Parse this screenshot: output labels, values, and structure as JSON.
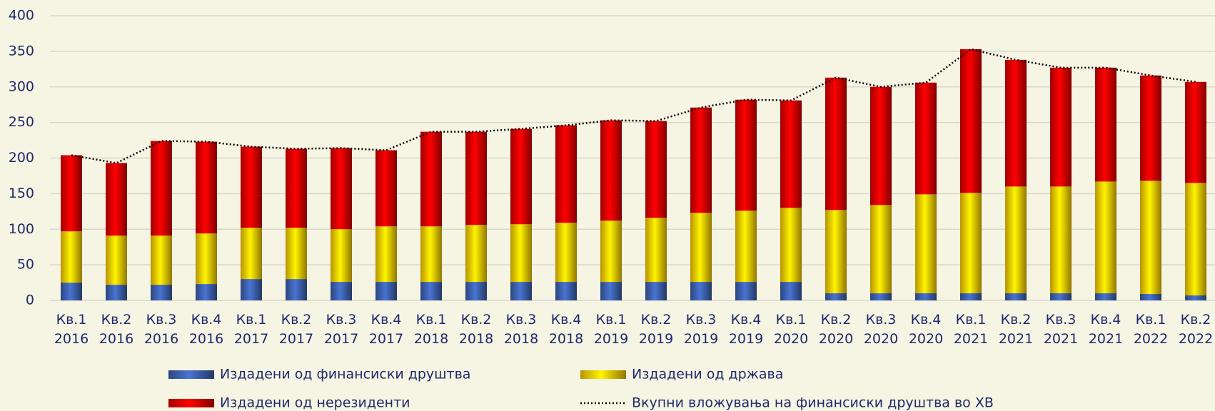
{
  "chart_data": {
    "type": "bar",
    "stacked": true,
    "categories": [
      "Кв.1 2016",
      "Кв.2 2016",
      "Кв.3 2016",
      "Кв.4 2016",
      "Кв.1 2017",
      "Кв.2 2017",
      "Кв.3 2017",
      "Кв.4 2017",
      "Кв.1 2018",
      "Кв.2 2018",
      "Кв.3 2018",
      "Кв.4 2018",
      "Кв.1 2019",
      "Кв.2 2019",
      "Кв.3 2019",
      "Кв.4 2019",
      "Кв.1 2020",
      "Кв.2 2020",
      "Кв.3 2020",
      "Кв.4 2020",
      "Кв.1 2021",
      "Кв.2 2021",
      "Кв.3 2021",
      "Кв.4 2021",
      "Кв.1 2022",
      "Кв.2 2022"
    ],
    "series": [
      {
        "name": "Издадени од финансиски друштва",
        "type": "bar",
        "color": "#3a5da8",
        "values": [
          25,
          22,
          22,
          23,
          30,
          30,
          26,
          26,
          26,
          26,
          26,
          26,
          26,
          26,
          26,
          26,
          26,
          10,
          10,
          10,
          10,
          10,
          10,
          10,
          9,
          7
        ]
      },
      {
        "name": "Издадени од држава",
        "type": "bar",
        "color": "#f5c400",
        "values": [
          72,
          69,
          69,
          71,
          72,
          72,
          74,
          78,
          78,
          80,
          81,
          83,
          86,
          90,
          97,
          100,
          104,
          117,
          124,
          139,
          141,
          150,
          150,
          157,
          159,
          158
        ]
      },
      {
        "name": "Издадени од нерезиденти",
        "type": "bar",
        "color": "#d80000",
        "values": [
          107,
          102,
          133,
          129,
          114,
          111,
          114,
          107,
          133,
          131,
          134,
          137,
          141,
          136,
          148,
          156,
          151,
          186,
          166,
          157,
          202,
          178,
          167,
          160,
          148,
          142
        ]
      },
      {
        "name": "Вкупни вложувања на финансиски друштва во ХВ",
        "type": "line",
        "color": "#000000",
        "values": [
          204,
          193,
          224,
          223,
          216,
          213,
          214,
          211,
          237,
          237,
          241,
          246,
          253,
          252,
          271,
          282,
          281,
          313,
          300,
          306,
          353,
          338,
          327,
          327,
          316,
          307
        ]
      }
    ],
    "ylim": [
      0,
      400
    ],
    "yticks": [
      0,
      50,
      100,
      150,
      200,
      250,
      300,
      350,
      400
    ],
    "grid": true
  }
}
